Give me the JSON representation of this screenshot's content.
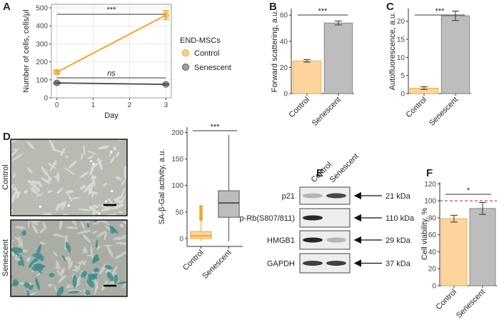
{
  "chart_data": [
    {
      "type": "line",
      "panel": "A",
      "xlabel": "Day",
      "ylabel": "Number of cells, cells/μl",
      "x": [
        0,
        3
      ],
      "xlim": [
        -0.15,
        3.15
      ],
      "xticks": [
        0,
        1,
        2,
        3
      ],
      "ylim": [
        0,
        520
      ],
      "yticks": [
        0,
        100,
        200,
        300,
        400,
        500
      ],
      "grid": true,
      "legend_title": "END-MSCs",
      "series": [
        {
          "name": "Control",
          "color": "#f5a52a",
          "values": [
            143,
            460
          ],
          "error": [
            8,
            25
          ]
        },
        {
          "name": "Senescent",
          "color": "#555555",
          "values": [
            83,
            75
          ],
          "error": [
            4,
            4
          ]
        }
      ],
      "annotations": [
        "***",
        "ns"
      ]
    },
    {
      "type": "bar",
      "panel": "B",
      "ylabel": "Forward scattering, a.u.",
      "categories": [
        "Control",
        "Senescent"
      ],
      "values": [
        25,
        54
      ],
      "error": [
        1,
        1.5
      ],
      "colors": [
        "#fdd49e",
        "#bdbdbd"
      ],
      "edge_colors": [
        "#f5a52a",
        "#777777"
      ],
      "ylim": [
        0,
        65
      ],
      "yticks": [
        0,
        20,
        40,
        60
      ],
      "annotations": [
        "***"
      ]
    },
    {
      "type": "bar",
      "panel": "C",
      "ylabel": "Autofluorescence, a.u.",
      "categories": [
        "Control",
        "Senescent"
      ],
      "values": [
        1.5,
        21.5
      ],
      "error": [
        0.4,
        1.3
      ],
      "colors": [
        "#fdd49e",
        "#bdbdbd"
      ],
      "edge_colors": [
        "#f5a52a",
        "#777777"
      ],
      "ylim": [
        0,
        23.5
      ],
      "yticks": [
        0,
        5,
        10,
        15,
        20
      ],
      "annotations": [
        "***"
      ]
    },
    {
      "type": "box",
      "panel": "D",
      "ylabel": "SA-β-Gal activity, a.u.",
      "categories": [
        "Control",
        "Senescent"
      ],
      "boxes": [
        {
          "whisker_low": -5,
          "q1": 0,
          "median": 5,
          "q3": 13,
          "whisker_high": 32,
          "outliers": [
            36,
            40,
            45,
            50,
            55,
            60
          ]
        },
        {
          "whisker_low": -5,
          "q1": 40,
          "median": 67,
          "q3": 90,
          "whisker_high": 195,
          "outliers": []
        }
      ],
      "colors": [
        "#fdd49e",
        "#bdbdbd"
      ],
      "edge_colors": [
        "#f5a52a",
        "#555555"
      ],
      "ylim": [
        -15,
        210
      ],
      "yticks": [
        0,
        50,
        100,
        150,
        200
      ],
      "annotations": [
        "***"
      ]
    },
    {
      "type": "bar",
      "panel": "F",
      "ylabel": "Cell viability, %",
      "categories": [
        "Control",
        "Senescent"
      ],
      "values": [
        79,
        91
      ],
      "error": [
        4,
        7
      ],
      "colors": [
        "#fdd49e",
        "#bdbdbd"
      ],
      "edge_colors": [
        "#f5a52a",
        "#777777"
      ],
      "ylim": [
        0,
        122
      ],
      "yticks": [
        0,
        20,
        40,
        60,
        80,
        100,
        120
      ],
      "reference_line": 100,
      "reference_color": "#c0504d",
      "annotations": [
        "*"
      ]
    }
  ],
  "images": {
    "labels": [
      "Control",
      "Senescent"
    ]
  },
  "blot": {
    "panel": "E",
    "columns": [
      "Control",
      "Senescent"
    ],
    "rows": [
      {
        "label": "p21",
        "size": "21 kDa"
      },
      {
        "label": "p-Rb(S807/811)",
        "size": "110 kDa"
      },
      {
        "label": "HMGB1",
        "size": "29 kDa"
      },
      {
        "label": "GAPDH",
        "size": "37 kDa"
      }
    ]
  }
}
